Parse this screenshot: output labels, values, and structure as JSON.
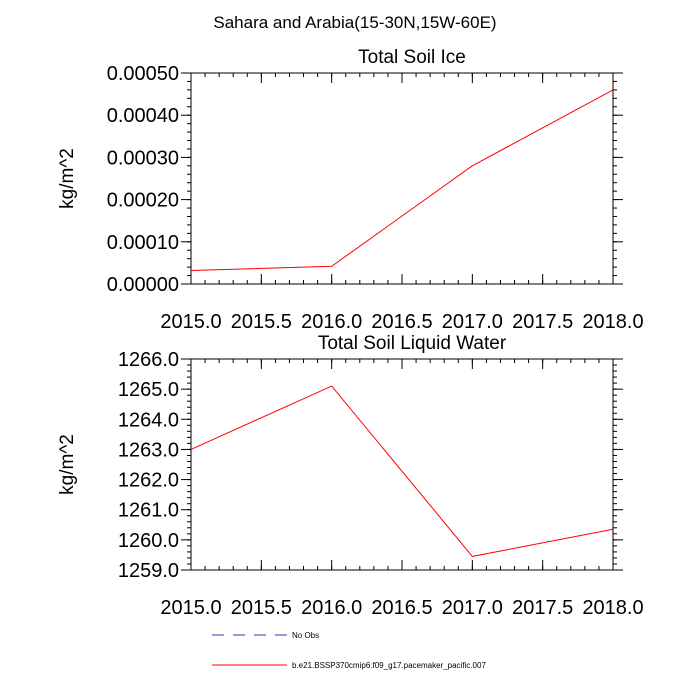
{
  "suptitle": "Sahara and Arabia(15-30N,15W-60E)",
  "chart_data": [
    {
      "type": "line",
      "title": "Total Soil Ice",
      "xlabel": "",
      "ylabel": "kg/m^2",
      "xlim": [
        2015.0,
        2018.0
      ],
      "ylim": [
        0.0,
        0.0005
      ],
      "xticks": [
        "2015.0",
        "2015.5",
        "2016.0",
        "2016.5",
        "2017.0",
        "2017.5",
        "2018.0"
      ],
      "yticks": [
        "0.00000",
        "0.00010",
        "0.00020",
        "0.00030",
        "0.00040",
        "0.00050"
      ],
      "series": [
        {
          "name": "b.e21.BSSP370cmip6.f09_g17.pacemaker_pacific.007",
          "color": "#ff0000",
          "x": [
            2015,
            2016,
            2017,
            2018
          ],
          "y": [
            3.2e-05,
            4.2e-05,
            0.00028,
            0.00046
          ]
        }
      ]
    },
    {
      "type": "line",
      "title": "Total Soil Liquid Water",
      "xlabel": "",
      "ylabel": "kg/m^2",
      "xlim": [
        2015.0,
        2018.0
      ],
      "ylim": [
        1259.0,
        1266.0
      ],
      "xticks": [
        "2015.0",
        "2015.5",
        "2016.0",
        "2016.5",
        "2017.0",
        "2017.5",
        "2018.0"
      ],
      "yticks": [
        "1259.0",
        "1260.0",
        "1261.0",
        "1262.0",
        "1263.0",
        "1264.0",
        "1265.0",
        "1266.0"
      ],
      "series": [
        {
          "name": "b.e21.BSSP370cmip6.f09_g17.pacemaker_pacific.007",
          "color": "#ff0000",
          "x": [
            2015,
            2016,
            2017,
            2018
          ],
          "y": [
            1263.0,
            1265.1,
            1259.45,
            1260.35
          ]
        }
      ]
    }
  ],
  "legend": {
    "items": [
      {
        "label": "No Obs",
        "color": "#3333aa",
        "style": "dashed"
      },
      {
        "label": "b.e21.BSSP370cmip6.f09_g17.pacemaker_pacific.007",
        "color": "#ff0000",
        "style": "solid"
      }
    ]
  }
}
